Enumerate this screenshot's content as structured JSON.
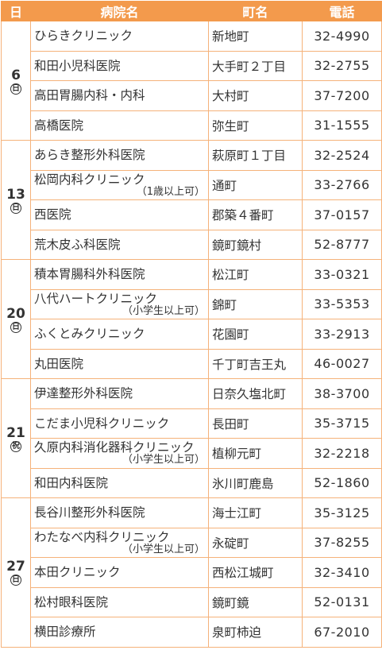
{
  "table": {
    "header": [
      "日",
      "病院名",
      "町名",
      "電話"
    ],
    "groups": [
      {
        "day": "6",
        "weekday": "日",
        "rows": [
          {
            "name": "ひらきクリニック",
            "town": "新地町",
            "tel": "32-4990"
          },
          {
            "name": "和田小児科医院",
            "town": "大手町２丁目",
            "tel": "32-2755"
          },
          {
            "name": "高田胃腸内科・内科",
            "town": "大村町",
            "tel": "37-7200"
          },
          {
            "name": "高橋医院",
            "town": "弥生町",
            "tel": "31-1555"
          }
        ]
      },
      {
        "day": "13",
        "weekday": "日",
        "rows": [
          {
            "name": "あらき整形外科医院",
            "town": "萩原町１丁目",
            "tel": "32-2524"
          },
          {
            "name": "松岡内科クリニック",
            "note": "（1歳以上可）",
            "town": "通町",
            "tel": "33-2766"
          },
          {
            "name": "西医院",
            "town": "郡築４番町",
            "tel": "37-0157"
          },
          {
            "name": "荒木皮ふ科医院",
            "town": "鏡町鏡村",
            "tel": "52-8777"
          }
        ]
      },
      {
        "day": "20",
        "weekday": "日",
        "rows": [
          {
            "name": "積本胃腸科外科医院",
            "town": "松江町",
            "tel": "33-0321"
          },
          {
            "name": "八代ハートクリニック",
            "note": "（小学生以上可）",
            "town": "錦町",
            "tel": "33-5353"
          },
          {
            "name": "ふくとみクリニック",
            "town": "花園町",
            "tel": "33-2913"
          },
          {
            "name": "丸田医院",
            "town": "千丁町吉王丸",
            "tel": "46-0027"
          }
        ]
      },
      {
        "day": "21",
        "weekday": "祝",
        "rows": [
          {
            "name": "伊達整形外科医院",
            "town": "日奈久塩北町",
            "tel": "38-3700"
          },
          {
            "name": "こだま小児科クリニック",
            "town": "長田町",
            "tel": "35-3715"
          },
          {
            "name": "久原内科消化器科クリニック",
            "note": "（小学生以上可）",
            "town": "植柳元町",
            "tel": "32-2218"
          },
          {
            "name": "和田内科医院",
            "town": "氷川町鹿島",
            "tel": "52-1860"
          }
        ]
      },
      {
        "day": "27",
        "weekday": "日",
        "rows": [
          {
            "name": "長谷川整形外科医院",
            "town": "海士江町",
            "tel": "35-3125"
          },
          {
            "name": "わたなべ内科クリニック",
            "note": "（小学生以上可）",
            "town": "永碇町",
            "tel": "37-8255"
          },
          {
            "name": "本田クリニック",
            "town": "西松江城町",
            "tel": "32-3410"
          },
          {
            "name": "松村眼科医院",
            "town": "鏡町鏡",
            "tel": "52-0131"
          },
          {
            "name": "横田診療所",
            "town": "泉町柿迫",
            "tel": "67-2010"
          }
        ]
      }
    ]
  }
}
